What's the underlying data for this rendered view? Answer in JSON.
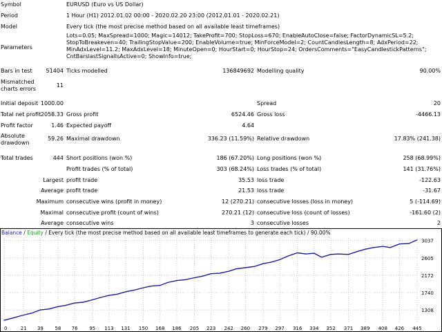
{
  "report": {
    "symbol_label": "Symbol",
    "symbol_value": "EURUSD (Euro vs US Dollar)",
    "period_label": "Period",
    "period_value": "1 Hour (H1) 2012.01.02 00:00 - 2020.02.20 23:00 (2012.01.01 - 2020.02.21)",
    "model_label": "Model",
    "model_value": "Every tick (the most precise method based on all available least timeframes)",
    "parameters_label": "Parameters",
    "parameters_value": "Lots=0.05; MaxSpread=1000; Magic=14012; TakeProfit=700; StopLoss=670; EnableAutoClose=false; FactorDynamicSL=5.2; StopToBreakeven=40; TrailingStopValue=200; EnableVolume=true; MinForceModel=2; CountCandlesLength=8; AdxPeriod=22; MinAdxLevel=11.2; MaxAdxLevel=18; MinuteOpen=0; HourStart=0; HourStop=24; OrdersComments=\"EasyCandlestickPatterns\"; CntBarslastSignalIsActive=0; ShowInfo=true;",
    "bars_label": "Bars in test",
    "bars_value": "51404",
    "ticks_label": "Ticks modelled",
    "ticks_value": "136849692",
    "quality_label": "Modelling quality",
    "quality_value": "90.00%",
    "mismatch_label": "Mismatched charts errors",
    "mismatch_value": "11",
    "deposit_label": "Initial deposit",
    "deposit_value": "1000.00",
    "spread_label": "Spread",
    "spread_value": "20",
    "netprofit_label": "Total net profit",
    "netprofit_value": "2058.33",
    "grossprofit_label": "Gross profit",
    "grossprofit_value": "6524.46",
    "grossloss_label": "Gross loss",
    "grossloss_value": "-4466.13",
    "pf_label": "Profit factor",
    "pf_value": "1.46",
    "payoff_label": "Expected payoff",
    "payoff_value": "4.64",
    "absdd_label": "Absolute drawdown",
    "absdd_value": "59.26",
    "maxdd_label": "Maximal drawdown",
    "maxdd_value": "336.23 (11.59%)",
    "reldd_label": "Relative drawdown",
    "reldd_value": "17.83% (241.38)",
    "trades_label": "Total trades",
    "trades_value": "444",
    "short_label": "Short positions (won %)",
    "short_value": "186 (67.20%)",
    "long_label": "Long positions (won %)",
    "long_value": "258 (68.99%)",
    "profit_trades_label": "Profit trades (% of total)",
    "profit_trades_value": "303 (68.24%)",
    "loss_trades_label": "Loss trades (% of total)",
    "loss_trades_value": "141 (31.76%)",
    "largest_label": "Largest",
    "largest_profit_label": "profit trade",
    "largest_profit_value": "35.53",
    "largest_loss_label": "loss trade",
    "largest_loss_value": "-122.63",
    "average_label": "Average",
    "average_profit_label": "profit trade",
    "average_profit_value": "21.53",
    "average_loss_label": "loss trade",
    "average_loss_value": "-31.67",
    "maximum_label": "Maximum",
    "max_wins_label": "consecutive wins (profit in money)",
    "max_wins_value": "12 (270.21)",
    "max_losses_label": "consecutive losses (loss in money)",
    "max_losses_value": "5 (-114.69)",
    "maximal_label": "Maximal",
    "maximal_profit_label": "consecutive profit (count of wins)",
    "maximal_profit_value": "270.21 (12)",
    "maximal_loss_label": "consecutive loss (count of losses)",
    "maximal_loss_value": "-161.60 (2)",
    "average2_label": "Average",
    "avg_wins_label": "consecutive wins",
    "avg_wins_value": "3",
    "avg_losses_label": "consecutive losses",
    "avg_losses_value": "2"
  },
  "chart": {
    "legend_balance": "Balance",
    "legend_sep": " / ",
    "legend_equity": "Equity",
    "legend_rest": " / Every tick (the most precise method based on all available least timeframes to generate each tick) / 90.00%",
    "colors": {
      "balance": "#1a1aa0",
      "equity": "#1aa01a",
      "grid": "#c8c8c8"
    }
  },
  "chart_data": {
    "type": "line",
    "title": "Balance / Equity / Every tick (the most precise method based on all available least timeframes to generate each tick) / 90.00%",
    "xlabel": "",
    "ylabel": "",
    "x_ticks": [
      "0",
      "21",
      "39",
      "58",
      "76",
      "95",
      "113",
      "131",
      "150",
      "168",
      "186",
      "205",
      "223",
      "242",
      "260",
      "279",
      "297",
      "316",
      "334",
      "352",
      "371",
      "389",
      "408",
      "426",
      "445"
    ],
    "y_ticks": [
      "3037",
      "2605",
      "2172",
      "1740",
      "1308"
    ],
    "xlim": [
      0,
      445
    ],
    "ylim": [
      1000,
      3100
    ],
    "series": [
      {
        "name": "Balance",
        "x": [
          0,
          10,
          21,
          30,
          39,
          48,
          58,
          66,
          76,
          85,
          95,
          104,
          113,
          122,
          131,
          140,
          150,
          158,
          168,
          176,
          186,
          195,
          205,
          214,
          223,
          232,
          242,
          250,
          260,
          270,
          279,
          288,
          297,
          306,
          316,
          325,
          334,
          342,
          352,
          360,
          371,
          380,
          389,
          398,
          408,
          416,
          426,
          436,
          445
        ],
        "values": [
          1050,
          1110,
          1180,
          1230,
          1310,
          1330,
          1390,
          1420,
          1480,
          1500,
          1560,
          1620,
          1670,
          1700,
          1760,
          1800,
          1860,
          1900,
          1920,
          1990,
          2040,
          2060,
          2110,
          2150,
          2210,
          2220,
          2270,
          2330,
          2360,
          2390,
          2460,
          2500,
          2560,
          2650,
          2730,
          2700,
          2720,
          2620,
          2690,
          2700,
          2690,
          2760,
          2820,
          2860,
          2890,
          2860,
          2950,
          2960,
          3050
        ]
      }
    ]
  }
}
